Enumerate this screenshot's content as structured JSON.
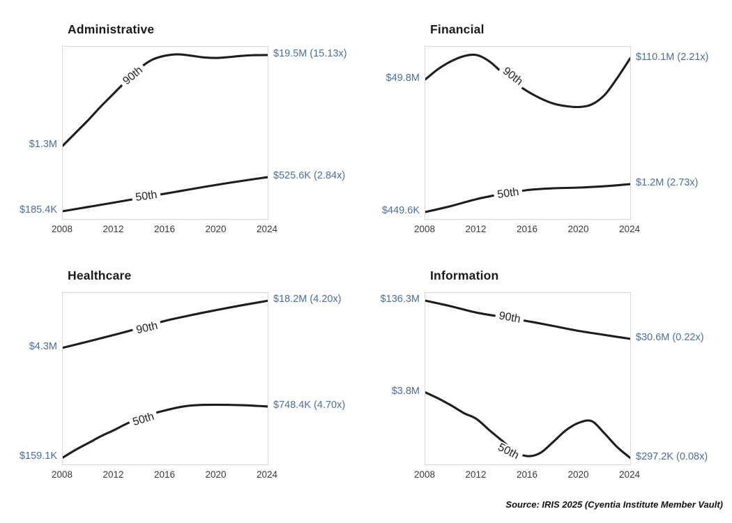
{
  "page": {
    "source_note": "Source: IRIS 2025 (Cyentia Institute Member Vault)"
  },
  "colors": {
    "line": "#1d1d1d",
    "value_label": "#4d6d9e",
    "axis_text": "#383838",
    "plot_border": "#d9d9d9",
    "title_text": "#1a1a1a"
  },
  "shape_encoding": "series points are [year, y_fraction_from_plot_top]; y axis is unlabeled in the figure, only start/end dollar values are shown",
  "chart_data": [
    {
      "type": "line",
      "title": "Administrative",
      "x_range": [
        2008,
        2024
      ],
      "x_ticks": [
        "2008",
        "2012",
        "2016",
        "2020",
        "2024"
      ],
      "series": [
        {
          "name": "90th",
          "start_label": "$1.3M",
          "end_label": "$19.5M (15.13x)",
          "start_value_usd": 1300000,
          "end_value_usd": 19500000,
          "multiplier": 15.13,
          "label": {
            "x_frac": 0.343,
            "y_frac": 0.17,
            "angle_deg": -40
          },
          "points": [
            [
              2008,
              0.575
            ],
            [
              2009,
              0.5
            ],
            [
              2010,
              0.425
            ],
            [
              2011,
              0.345
            ],
            [
              2012,
              0.27
            ],
            [
              2013,
              0.195
            ],
            [
              2014,
              0.125
            ],
            [
              2015,
              0.075
            ],
            [
              2016,
              0.052
            ],
            [
              2017,
              0.044
            ],
            [
              2018,
              0.052
            ],
            [
              2019,
              0.062
            ],
            [
              2020,
              0.065
            ],
            [
              2021,
              0.06
            ],
            [
              2022,
              0.053
            ],
            [
              2023,
              0.049
            ],
            [
              2024,
              0.048
            ]
          ]
        },
        {
          "name": "50th",
          "start_label": "$185.4K",
          "end_label": "$525.6K (2.84x)",
          "start_value_usd": 185400,
          "end_value_usd": 525600,
          "multiplier": 2.84,
          "label": {
            "x_frac": 0.408,
            "y_frac": 0.87,
            "angle_deg": -8
          },
          "points": [
            [
              2008,
              0.955
            ],
            [
              2012,
              0.905
            ],
            [
              2016,
              0.853
            ],
            [
              2020,
              0.802
            ],
            [
              2024,
              0.757
            ]
          ]
        }
      ]
    },
    {
      "type": "line",
      "title": "Financial",
      "x_range": [
        2008,
        2024
      ],
      "x_ticks": [
        "2008",
        "2012",
        "2016",
        "2020",
        "2024"
      ],
      "series": [
        {
          "name": "90th",
          "start_label": "$49.8M",
          "end_label": "$110.1M (2.21x)",
          "start_value_usd": 49800000,
          "end_value_usd": 110100000,
          "multiplier": 2.21,
          "label": {
            "x_frac": 0.425,
            "y_frac": 0.174,
            "angle_deg": 38
          },
          "points": [
            [
              2008,
              0.19
            ],
            [
              2009,
              0.13
            ],
            [
              2010,
              0.085
            ],
            [
              2011,
              0.055
            ],
            [
              2012,
              0.048
            ],
            [
              2013,
              0.085
            ],
            [
              2014,
              0.15
            ],
            [
              2015,
              0.21
            ],
            [
              2016,
              0.26
            ],
            [
              2017,
              0.3
            ],
            [
              2018,
              0.33
            ],
            [
              2019,
              0.345
            ],
            [
              2020,
              0.35
            ],
            [
              2021,
              0.335
            ],
            [
              2022,
              0.28
            ],
            [
              2023,
              0.18
            ],
            [
              2024,
              0.067
            ]
          ]
        },
        {
          "name": "50th",
          "start_label": "$449.6K",
          "end_label": "$1.2M (2.73x)",
          "start_value_usd": 449600,
          "end_value_usd": 1200000,
          "multiplier": 2.73,
          "label": {
            "x_frac": 0.405,
            "y_frac": 0.854,
            "angle_deg": -8
          },
          "points": [
            [
              2008,
              0.96
            ],
            [
              2010,
              0.925
            ],
            [
              2012,
              0.885
            ],
            [
              2014,
              0.855
            ],
            [
              2016,
              0.832
            ],
            [
              2018,
              0.822
            ],
            [
              2020,
              0.818
            ],
            [
              2022,
              0.81
            ],
            [
              2024,
              0.798
            ]
          ]
        }
      ]
    },
    {
      "type": "line",
      "title": "Healthcare",
      "x_range": [
        2008,
        2024
      ],
      "x_ticks": [
        "2008",
        "2012",
        "2016",
        "2020",
        "2024"
      ],
      "series": [
        {
          "name": "90th",
          "start_label": "$4.3M",
          "end_label": "$18.2M (4.20x)",
          "start_value_usd": 4300000,
          "end_value_usd": 18200000,
          "multiplier": 4.2,
          "label": {
            "x_frac": 0.41,
            "y_frac": 0.207,
            "angle_deg": -13
          },
          "points": [
            [
              2008,
              0.32
            ],
            [
              2010,
              0.283
            ],
            [
              2012,
              0.245
            ],
            [
              2014,
              0.205
            ],
            [
              2016,
              0.163
            ],
            [
              2018,
              0.13
            ],
            [
              2020,
              0.1
            ],
            [
              2022,
              0.072
            ],
            [
              2024,
              0.046
            ]
          ]
        },
        {
          "name": "50th",
          "start_label": "$159.1K",
          "end_label": "$748.4K (4.70x)",
          "start_value_usd": 159100,
          "end_value_usd": 748400,
          "multiplier": 4.7,
          "label": {
            "x_frac": 0.395,
            "y_frac": 0.74,
            "angle_deg": -17
          },
          "points": [
            [
              2008,
              0.96
            ],
            [
              2009,
              0.915
            ],
            [
              2010,
              0.875
            ],
            [
              2011,
              0.835
            ],
            [
              2012,
              0.8
            ],
            [
              2013,
              0.762
            ],
            [
              2014,
              0.73
            ],
            [
              2015,
              0.705
            ],
            [
              2016,
              0.685
            ],
            [
              2017,
              0.668
            ],
            [
              2018,
              0.657
            ],
            [
              2019,
              0.653
            ],
            [
              2020,
              0.652
            ],
            [
              2021,
              0.653
            ],
            [
              2022,
              0.655
            ],
            [
              2023,
              0.658
            ],
            [
              2024,
              0.662
            ]
          ]
        }
      ]
    },
    {
      "type": "line",
      "title": "Information",
      "x_range": [
        2008,
        2024
      ],
      "x_ticks": [
        "2008",
        "2012",
        "2016",
        "2020",
        "2024"
      ],
      "series": [
        {
          "name": "90th",
          "start_label": "$136.3M",
          "end_label": "$30.6M (0.22x)",
          "start_value_usd": 136300000,
          "end_value_usd": 30600000,
          "multiplier": 0.22,
          "label": {
            "x_frac": 0.41,
            "y_frac": 0.146,
            "angle_deg": 10
          },
          "points": [
            [
              2008,
              0.045
            ],
            [
              2010,
              0.078
            ],
            [
              2012,
              0.115
            ],
            [
              2014,
              0.14
            ],
            [
              2016,
              0.165
            ],
            [
              2018,
              0.193
            ],
            [
              2020,
              0.222
            ],
            [
              2022,
              0.245
            ],
            [
              2024,
              0.268
            ]
          ]
        },
        {
          "name": "50th",
          "start_label": "$3.8M",
          "end_label": "$297.2K (0.08x)",
          "start_value_usd": 3800000,
          "end_value_usd": 297200,
          "multiplier": 0.08,
          "label": {
            "x_frac": 0.405,
            "y_frac": 0.927,
            "angle_deg": 27
          },
          "points": [
            [
              2008,
              0.58
            ],
            [
              2009,
              0.615
            ],
            [
              2010,
              0.655
            ],
            [
              2011,
              0.7
            ],
            [
              2012,
              0.735
            ],
            [
              2013,
              0.8
            ],
            [
              2014,
              0.862
            ],
            [
              2015,
              0.925
            ],
            [
              2016,
              0.952
            ],
            [
              2017,
              0.932
            ],
            [
              2018,
              0.868
            ],
            [
              2019,
              0.8
            ],
            [
              2020,
              0.757
            ],
            [
              2021,
              0.748
            ],
            [
              2022,
              0.82
            ],
            [
              2023,
              0.9
            ],
            [
              2024,
              0.962
            ]
          ]
        }
      ]
    }
  ]
}
